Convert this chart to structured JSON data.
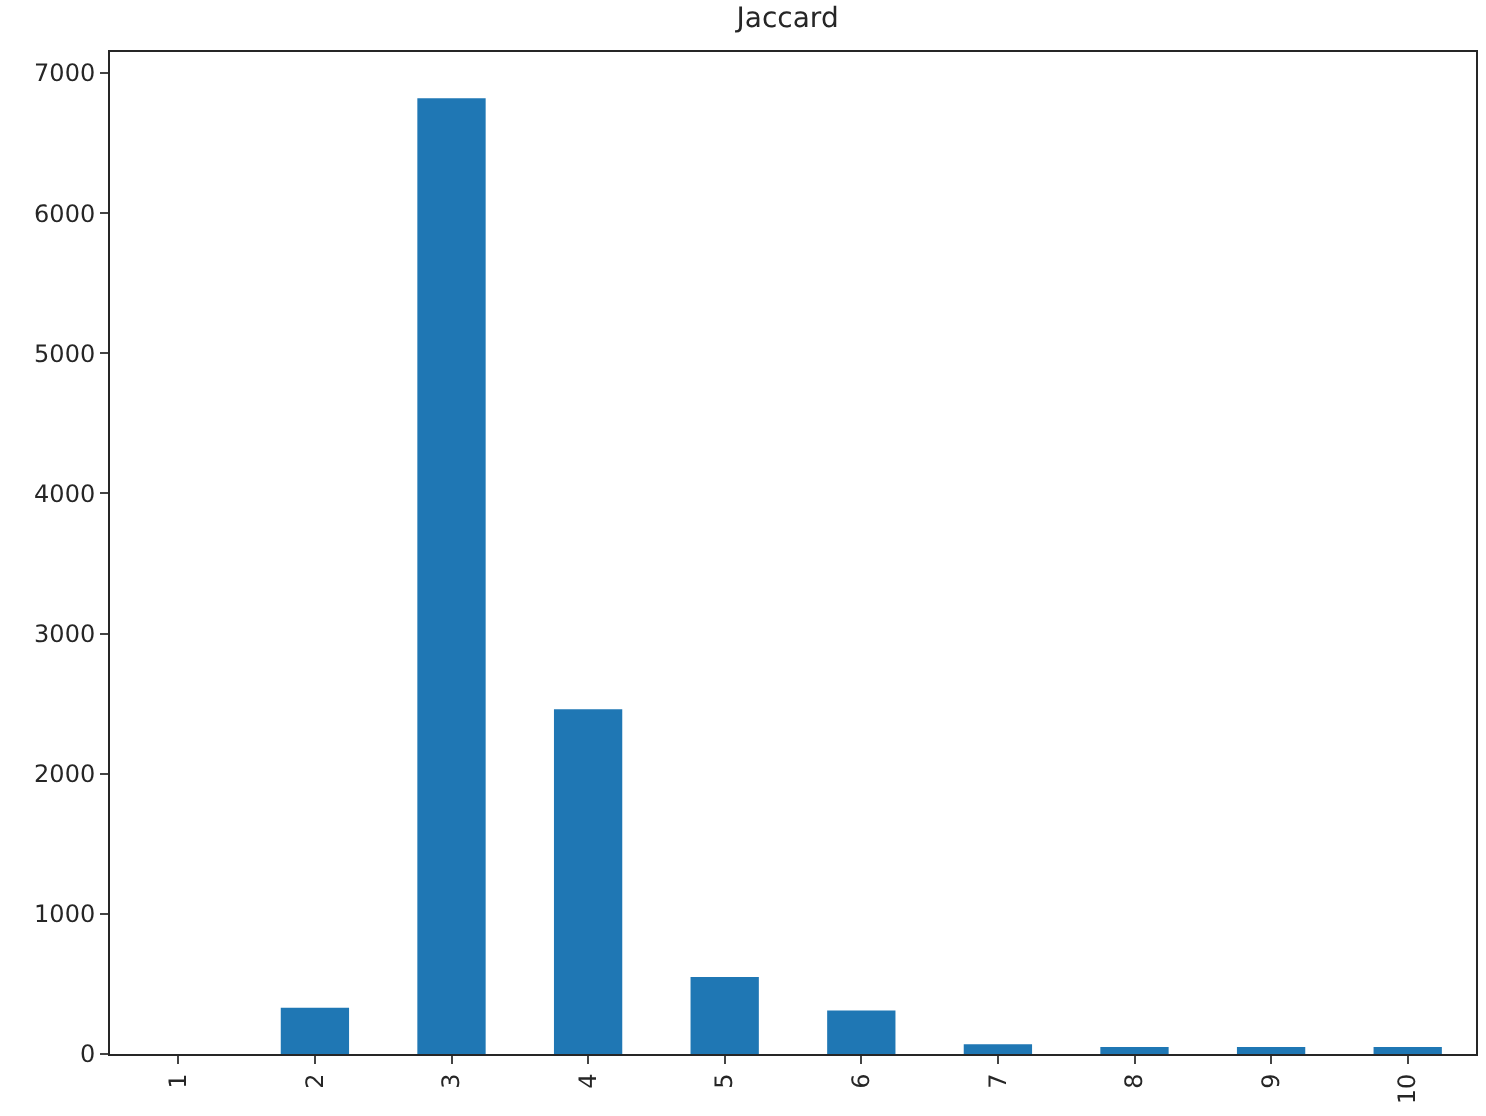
{
  "chart_data": {
    "type": "bar",
    "title": "Jaccard",
    "categories": [
      "1",
      "2",
      "3",
      "4",
      "5",
      "6",
      "7",
      "8",
      "9",
      "10"
    ],
    "series": [
      {
        "color": "#1f77b4",
        "values": [
          0,
          330,
          6820,
          2460,
          550,
          310,
          70,
          50,
          50,
          50
        ]
      }
    ],
    "ylim": [
      0,
      7150
    ],
    "yticks": [
      0,
      1000,
      2000,
      3000,
      4000,
      5000,
      6000,
      7000
    ]
  }
}
